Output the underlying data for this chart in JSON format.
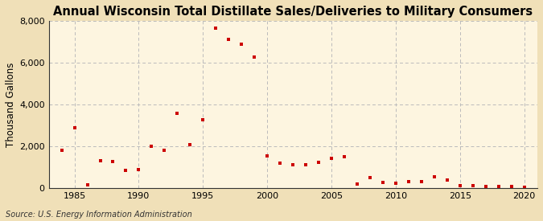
{
  "title": "Annual Wisconsin Total Distillate Sales/Deliveries to Military Consumers",
  "ylabel": "Thousand Gallons",
  "source": "Source: U.S. Energy Information Administration",
  "background_color": "#f5e6c8",
  "plot_bg_color": "#fdf5e0",
  "marker_color": "#cc0000",
  "grid_color": "#bbbbbb",
  "spine_color": "#333333",
  "years": [
    1984,
    1985,
    1986,
    1987,
    1988,
    1989,
    1990,
    1991,
    1992,
    1993,
    1994,
    1995,
    1996,
    1997,
    1998,
    1999,
    2000,
    2001,
    2002,
    2003,
    2004,
    2005,
    2006,
    2007,
    2008,
    2009,
    2010,
    2011,
    2012,
    2013,
    2014,
    2015,
    2016,
    2017,
    2018,
    2019,
    2020
  ],
  "values": [
    1800,
    2900,
    150,
    1300,
    1250,
    830,
    870,
    1990,
    1800,
    3580,
    2080,
    3250,
    7650,
    7120,
    6870,
    6280,
    1540,
    1180,
    1130,
    1100,
    1210,
    1430,
    1480,
    200,
    480,
    250,
    220,
    300,
    290,
    520,
    380,
    100,
    130,
    90,
    75,
    60,
    30
  ],
  "xlim": [
    1983,
    2021
  ],
  "ylim": [
    0,
    8000
  ],
  "xticks": [
    1985,
    1990,
    1995,
    2000,
    2005,
    2010,
    2015,
    2020
  ],
  "yticks": [
    0,
    2000,
    4000,
    6000,
    8000
  ],
  "ytick_labels": [
    "0",
    "2,000",
    "4,000",
    "6,000",
    "8,000"
  ],
  "title_fontsize": 10.5,
  "label_fontsize": 8.5,
  "tick_fontsize": 8,
  "source_fontsize": 7
}
